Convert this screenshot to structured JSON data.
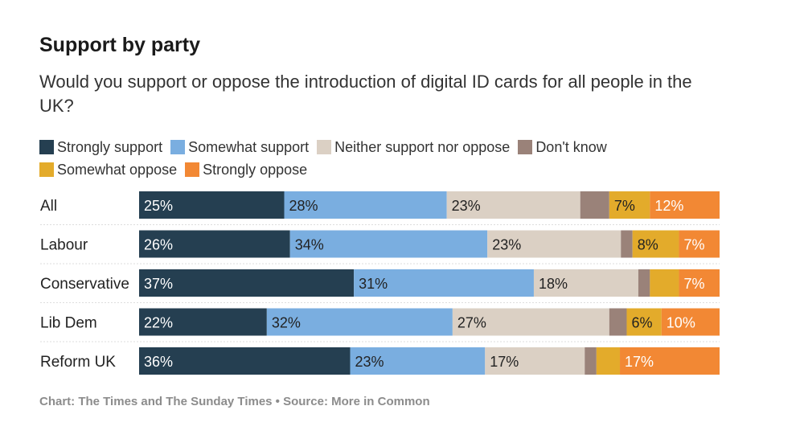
{
  "chart_data": {
    "type": "bar",
    "orientation": "horizontal",
    "stacked": true,
    "normalized": true,
    "title": "Support by party",
    "subtitle": "Would you support or oppose the introduction of digital ID cards for all people in the UK?",
    "categories": [
      "All",
      "Labour",
      "Conservative",
      "Lib Dem",
      "Reform UK"
    ],
    "series": [
      {
        "name": "Strongly support",
        "color": "#253f51",
        "values": [
          25,
          26,
          37,
          22,
          36
        ]
      },
      {
        "name": "Somewhat support",
        "color": "#7aaee0",
        "values": [
          28,
          34,
          31,
          32,
          23
        ]
      },
      {
        "name": "Neither support nor oppose",
        "color": "#dbd0c4",
        "values": [
          23,
          23,
          18,
          27,
          17
        ]
      },
      {
        "name": "Don't know",
        "color": "#9a8279",
        "values": [
          5,
          2,
          2,
          3,
          2
        ]
      },
      {
        "name": "Somewhat oppose",
        "color": "#e3ab2b",
        "values": [
          7,
          8,
          5,
          6,
          4
        ]
      },
      {
        "name": "Strongly oppose",
        "color": "#f28834",
        "values": [
          12,
          7,
          7,
          10,
          17
        ]
      }
    ],
    "label_threshold": 6,
    "legend_position": "top-left",
    "source": "Chart: The Times and The Sunday Times • Source: More in Common"
  }
}
